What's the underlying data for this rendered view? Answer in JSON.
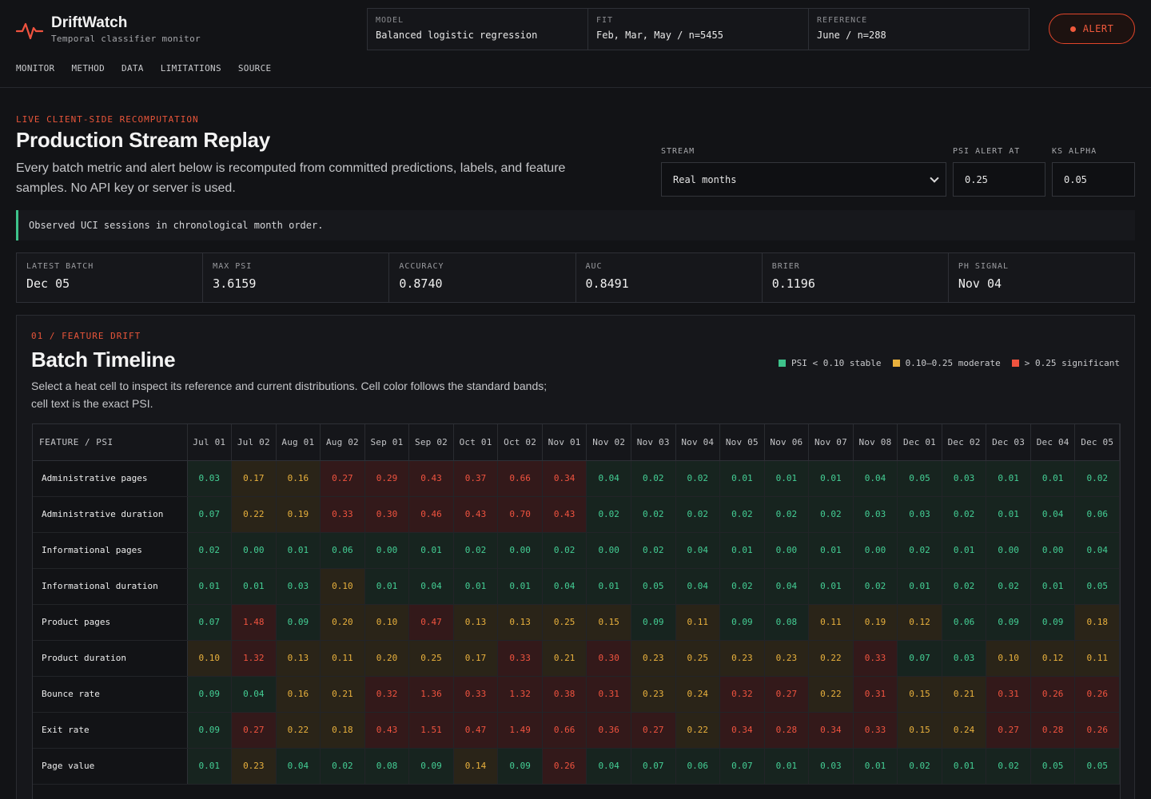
{
  "header": {
    "brand_name": "DriftWatch",
    "brand_sub": "Temporal classifier monitor",
    "meta": [
      {
        "label": "MODEL",
        "value": "Balanced logistic regression"
      },
      {
        "label": "FIT",
        "value": "Feb, Mar, May / n=5455"
      },
      {
        "label": "REFERENCE",
        "value": "June / n=288"
      }
    ],
    "alert_label": "ALERT",
    "nav": [
      "MONITOR",
      "METHOD",
      "DATA",
      "LIMITATIONS",
      "SOURCE"
    ]
  },
  "intro": {
    "eyebrow": "LIVE CLIENT-SIDE RECOMPUTATION",
    "title": "Production Stream Replay",
    "description": "Every batch metric and alert below is recomputed from committed predictions, labels, and feature samples. No API key or server is used."
  },
  "controls": {
    "stream_label": "STREAM",
    "stream_value": "Real months",
    "psi_label": "PSI ALERT AT",
    "psi_value": "0.25",
    "ks_label": "KS ALPHA",
    "ks_value": "0.05"
  },
  "notice": "Observed UCI sessions in chronological month order.",
  "stats": [
    {
      "label": "LATEST BATCH",
      "value": "Dec 05"
    },
    {
      "label": "MAX PSI",
      "value": "3.6159"
    },
    {
      "label": "ACCURACY",
      "value": "0.8740"
    },
    {
      "label": "AUC",
      "value": "0.8491"
    },
    {
      "label": "BRIER",
      "value": "0.1196"
    },
    {
      "label": "PH SIGNAL",
      "value": "Nov 04"
    }
  ],
  "panel": {
    "eyebrow": "01 / FEATURE DRIFT",
    "title": "Batch Timeline",
    "description": "Select a heat cell to inspect its reference and current distributions. Cell color follows the standard bands; cell text is the exact PSI.",
    "legend": [
      {
        "label": "PSI < 0.10 stable",
        "color": "#3ec38b"
      },
      {
        "label": "0.10–0.25 moderate",
        "color": "#e9b13d"
      },
      {
        "label": "> 0.25 significant",
        "color": "#f0533f"
      }
    ],
    "feature_header": "FEATURE / PSI",
    "columns": [
      "Jul 01",
      "Jul 02",
      "Aug 01",
      "Aug 02",
      "Sep 01",
      "Sep 02",
      "Oct 01",
      "Oct 02",
      "Nov 01",
      "Nov 02",
      "Nov 03",
      "Nov 04",
      "Nov 05",
      "Nov 06",
      "Nov 07",
      "Nov 08",
      "Dec 01",
      "Dec 02",
      "Dec 03",
      "Dec 04",
      "Dec 05"
    ],
    "rows": [
      {
        "feature": "Administrative pages",
        "values": [
          "0.03",
          "0.17",
          "0.16",
          "0.27",
          "0.29",
          "0.43",
          "0.37",
          "0.66",
          "0.34",
          "0.04",
          "0.02",
          "0.02",
          "0.01",
          "0.01",
          "0.01",
          "0.04",
          "0.05",
          "0.03",
          "0.01",
          "0.01",
          "0.02"
        ]
      },
      {
        "feature": "Administrative duration",
        "values": [
          "0.07",
          "0.22",
          "0.19",
          "0.33",
          "0.30",
          "0.46",
          "0.43",
          "0.70",
          "0.43",
          "0.02",
          "0.02",
          "0.02",
          "0.02",
          "0.02",
          "0.02",
          "0.03",
          "0.03",
          "0.02",
          "0.01",
          "0.04",
          "0.06"
        ]
      },
      {
        "feature": "Informational pages",
        "values": [
          "0.02",
          "0.00",
          "0.01",
          "0.06",
          "0.00",
          "0.01",
          "0.02",
          "0.00",
          "0.02",
          "0.00",
          "0.02",
          "0.04",
          "0.01",
          "0.00",
          "0.01",
          "0.00",
          "0.02",
          "0.01",
          "0.00",
          "0.00",
          "0.04"
        ]
      },
      {
        "feature": "Informational duration",
        "values": [
          "0.01",
          "0.01",
          "0.03",
          "0.10",
          "0.01",
          "0.04",
          "0.01",
          "0.01",
          "0.04",
          "0.01",
          "0.05",
          "0.04",
          "0.02",
          "0.04",
          "0.01",
          "0.02",
          "0.01",
          "0.02",
          "0.02",
          "0.01",
          "0.05"
        ]
      },
      {
        "feature": "Product pages",
        "values": [
          "0.07",
          "1.48",
          "0.09",
          "0.20",
          "0.10",
          "0.47",
          "0.13",
          "0.13",
          "0.25",
          "0.15",
          "0.09",
          "0.11",
          "0.09",
          "0.08",
          "0.11",
          "0.19",
          "0.12",
          "0.06",
          "0.09",
          "0.09",
          "0.18"
        ]
      },
      {
        "feature": "Product duration",
        "values": [
          "0.10",
          "1.32",
          "0.13",
          "0.11",
          "0.20",
          "0.25",
          "0.17",
          "0.33",
          "0.21",
          "0.30",
          "0.23",
          "0.25",
          "0.23",
          "0.23",
          "0.22",
          "0.33",
          "0.07",
          "0.03",
          "0.10",
          "0.12",
          "0.11"
        ]
      },
      {
        "feature": "Bounce rate",
        "values": [
          "0.09",
          "0.04",
          "0.16",
          "0.21",
          "0.32",
          "1.36",
          "0.33",
          "1.32",
          "0.38",
          "0.31",
          "0.23",
          "0.24",
          "0.32",
          "0.27",
          "0.22",
          "0.31",
          "0.15",
          "0.21",
          "0.31",
          "0.26",
          "0.26"
        ]
      },
      {
        "feature": "Exit rate",
        "values": [
          "0.09",
          "0.27",
          "0.22",
          "0.18",
          "0.43",
          "1.51",
          "0.47",
          "1.49",
          "0.66",
          "0.36",
          "0.27",
          "0.22",
          "0.34",
          "0.28",
          "0.34",
          "0.33",
          "0.15",
          "0.24",
          "0.27",
          "0.28",
          "0.26"
        ]
      },
      {
        "feature": "Page value",
        "values": [
          "0.01",
          "0.23",
          "0.04",
          "0.02",
          "0.08",
          "0.09",
          "0.14",
          "0.09",
          "0.26",
          "0.04",
          "0.07",
          "0.06",
          "0.07",
          "0.01",
          "0.03",
          "0.01",
          "0.02",
          "0.01",
          "0.02",
          "0.05",
          "0.05"
        ]
      }
    ]
  }
}
